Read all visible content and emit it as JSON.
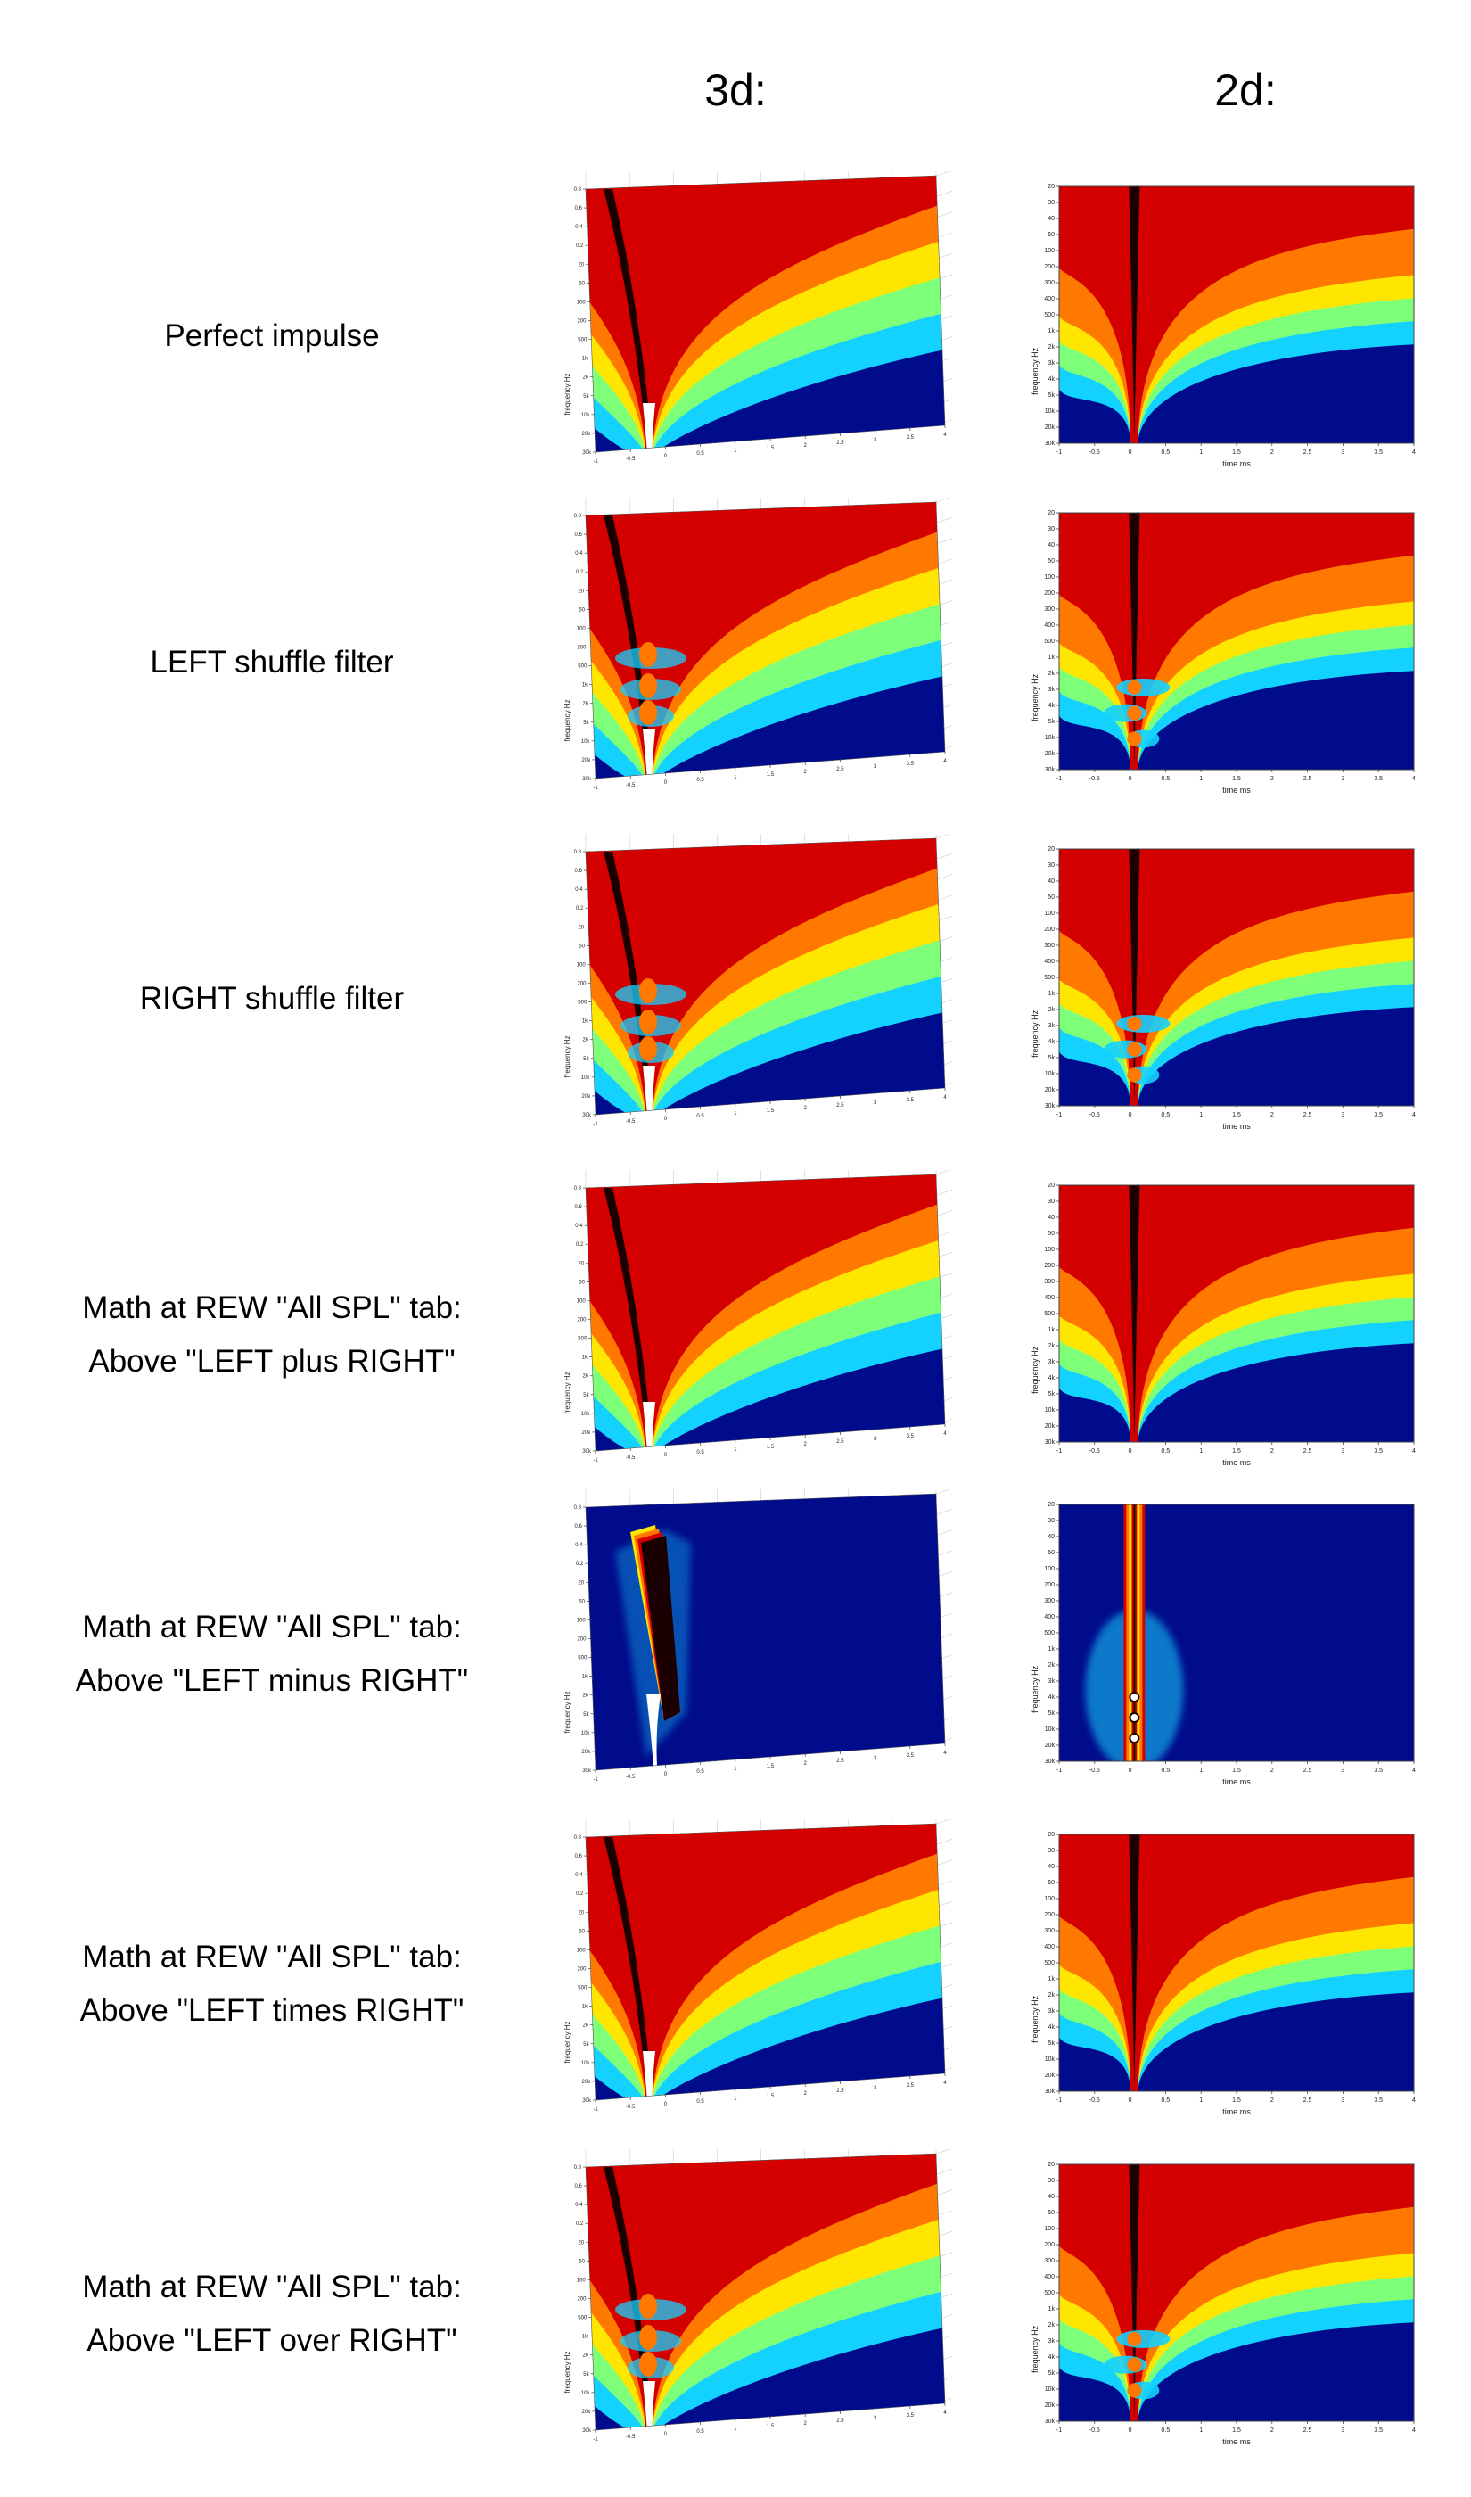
{
  "headers": {
    "col3d": "3d:",
    "col2d": "2d:"
  },
  "axis_text": {
    "xlabel_2d": "time  ms",
    "freq_label": "frequency  Hz",
    "x_ticks": [
      "-1",
      "-0.5",
      "0",
      "0.5",
      "1",
      "1.5",
      "2",
      "2.5",
      "3",
      "3.5",
      "4"
    ],
    "y_ticks_2d": [
      "20",
      "30",
      "40",
      "50",
      "100",
      "200",
      "300",
      "400",
      "500",
      "1k",
      "2k",
      "3k",
      "4k",
      "5k",
      "10k",
      "20k",
      "30k"
    ],
    "y_ticks_3d": [
      "0.8",
      "0.6",
      "0.4",
      "0.2",
      "20",
      "50",
      "100",
      "200",
      "500",
      "1k",
      "2k",
      "5k",
      "10k",
      "20k",
      "30k"
    ]
  },
  "colors": {
    "low": "#000c8c",
    "cyan": "#14d2ff",
    "green": "#7dff7a",
    "yellow": "#ffe600",
    "orange": "#ff7800",
    "red": "#d40000",
    "dark": "#1a0000"
  },
  "rows": [
    {
      "id": "perfect",
      "label_lines": [
        "Perfect impulse"
      ],
      "pattern": "impulse"
    },
    {
      "id": "left",
      "label_lines": [
        "LEFT shuffle filter"
      ],
      "pattern": "shuffle"
    },
    {
      "id": "right",
      "label_lines": [
        "RIGHT shuffle filter"
      ],
      "pattern": "shuffle"
    },
    {
      "id": "plus",
      "label_lines": [
        "Math at REW \"All SPL\" tab:",
        "Above \"LEFT plus RIGHT\""
      ],
      "pattern": "impulse"
    },
    {
      "id": "minus",
      "label_lines": [
        "Math at REW \"All SPL\" tab:",
        "Above \"LEFT minus RIGHT\""
      ],
      "pattern": "minus"
    },
    {
      "id": "times",
      "label_lines": [
        "Math at REW \"All SPL\" tab:",
        "Above \"LEFT times RIGHT\""
      ],
      "pattern": "impulse"
    },
    {
      "id": "over",
      "label_lines": [
        "Math at REW \"All SPL\" tab:",
        "Above \"LEFT over RIGHT\""
      ],
      "pattern": "shuffle"
    }
  ]
}
